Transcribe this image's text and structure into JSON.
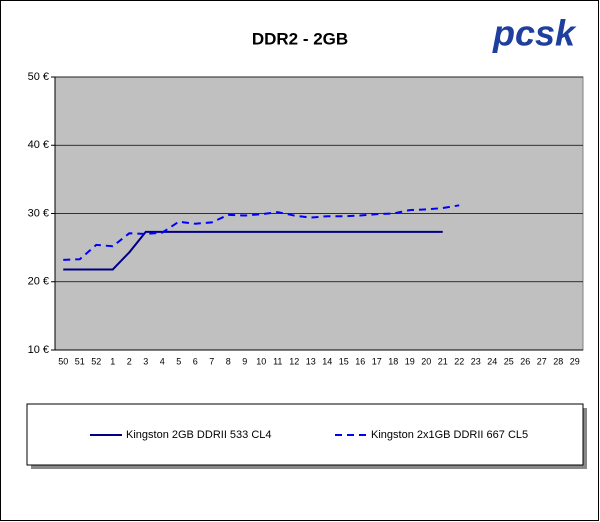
{
  "logo": "pcsk",
  "chart_data": {
    "type": "line",
    "title": "DDR2 - 2GB",
    "categories": [
      "50",
      "51",
      "52",
      "1",
      "2",
      "3",
      "4",
      "5",
      "6",
      "7",
      "8",
      "9",
      "10",
      "11",
      "12",
      "13",
      "14",
      "15",
      "16",
      "17",
      "18",
      "19",
      "20",
      "21",
      "22",
      "23",
      "24",
      "25",
      "26",
      "27",
      "28",
      "29"
    ],
    "series": [
      {
        "name": "Kingston 2GB DDRII 533 CL4",
        "color": "#000080",
        "dash": false,
        "values": [
          21.8,
          21.8,
          21.8,
          21.8,
          24.3,
          27.3,
          27.3,
          27.3,
          27.3,
          27.3,
          27.3,
          27.3,
          27.3,
          27.3,
          27.3,
          27.3,
          27.3,
          27.3,
          27.3,
          27.3,
          27.3,
          27.3,
          27.3,
          27.3,
          null,
          null,
          null,
          null,
          null,
          null,
          null,
          null
        ]
      },
      {
        "name": "Kingston 2x1GB DDRII 667 CL5",
        "color": "#0000ff",
        "dash": true,
        "values": [
          23.2,
          23.3,
          25.4,
          25.2,
          27.1,
          27.0,
          27.2,
          28.8,
          28.5,
          28.7,
          29.8,
          29.7,
          29.9,
          30.2,
          29.7,
          29.4,
          29.6,
          29.6,
          29.7,
          29.9,
          30.0,
          30.5,
          30.6,
          30.8,
          31.2,
          null,
          null,
          null,
          null,
          null,
          null,
          null
        ]
      }
    ],
    "ylim": [
      10,
      50
    ],
    "yticks": [
      {
        "value": 10,
        "label": "10 €"
      },
      {
        "value": 20,
        "label": "20 €"
      },
      {
        "value": 30,
        "label": "30 €"
      },
      {
        "value": 40,
        "label": "40 €"
      },
      {
        "value": 50,
        "label": "50 €"
      }
    ],
    "grid": true
  }
}
